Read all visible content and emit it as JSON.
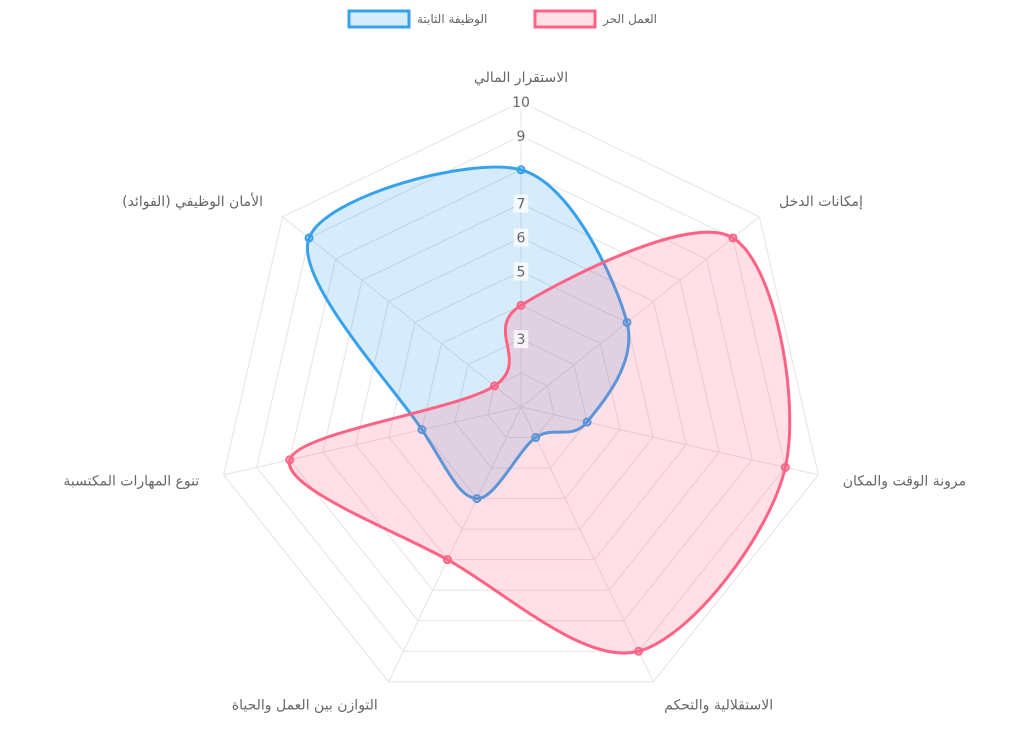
{
  "chart_data": {
    "type": "radar",
    "categories": [
      "الاستقرار المالي",
      "إمكانات الدخل",
      "مرونة الوقت والمكان",
      "الاستقلالية والتحكم",
      "التوازن بين العمل والحياة",
      "تنوع المهارات المكتسبة",
      "الأمان الوظيفي (الفوائد)"
    ],
    "series": [
      {
        "name": "الوظيفة الثابتة",
        "values": [
          8,
          5,
          3,
          2,
          4,
          4,
          9
        ],
        "color": "#36a2eb",
        "fill": "rgba(54,162,235,0.2)"
      },
      {
        "name": "العمل الحر",
        "values": [
          4,
          9,
          9,
          9,
          6,
          8,
          2
        ],
        "color": "#ff6384",
        "fill": "rgba(255,99,132,0.2)"
      }
    ],
    "scale": {
      "min": 1,
      "max": 10,
      "ticks": [
        3,
        5,
        6,
        7,
        9,
        10
      ]
    },
    "legend_position": "top",
    "grid": true
  }
}
